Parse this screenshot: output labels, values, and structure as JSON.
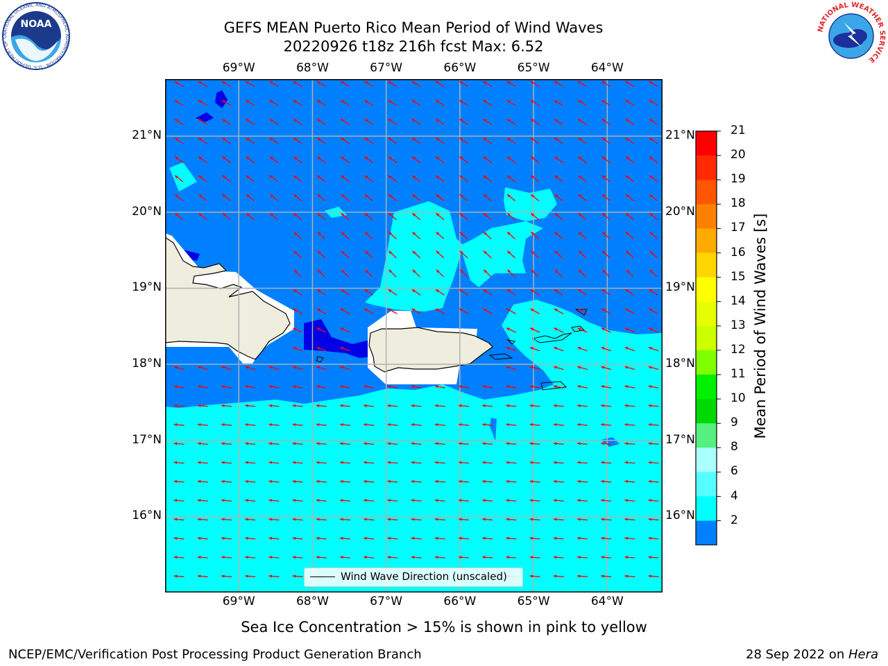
{
  "header": {
    "title_line1": "GEFS MEAN Puerto Rico Mean Period of Wind Waves",
    "title_line2": "20220926 t18z 216h fcst   Max: 6.52"
  },
  "logos": {
    "left_name": "NOAA",
    "left_ring_text": "NATIONAL OCEANIC AND ATMOSPHERIC ADMINISTRATION · U.S. DEPARTMENT OF COMMERCE",
    "right_ring_text": "NATIONAL WEATHER SERVICE"
  },
  "map": {
    "lon_labels": [
      "69°W",
      "68°W",
      "67°W",
      "66°W",
      "65°W",
      "64°W"
    ],
    "lat_labels": [
      "21°N",
      "20°N",
      "19°N",
      "18°N",
      "17°N",
      "16°N"
    ],
    "extent": {
      "lon_min": -70.0,
      "lon_max": -63.25,
      "lat_min": 15.0,
      "lat_max": 21.75
    },
    "arrow_color": "#ff0000",
    "land_color": "#efedde",
    "ocean_colors": {
      "2-4": "#0080ff",
      "4-6": "#00ffff",
      "below-2": "#0000e6"
    },
    "legend_label": "Wind Wave Direction (unscaled)"
  },
  "colorbar": {
    "label": "Mean Period of Wind Waves [s]",
    "ticks": [
      "21",
      "20",
      "19",
      "18",
      "17",
      "16",
      "15",
      "14",
      "13",
      "12",
      "11",
      "10",
      "9",
      "8",
      "6",
      "4",
      "2"
    ],
    "colors": [
      "#ff0000",
      "#ff2a00",
      "#ff5500",
      "#ff8000",
      "#ffaa00",
      "#ffd500",
      "#ffff00",
      "#e6ff00",
      "#ccff00",
      "#80ff00",
      "#00f000",
      "#00d900",
      "#55f080",
      "#aaffff",
      "#55ffff",
      "#00ffff",
      "#0080ff"
    ],
    "under_color": "#0000e6"
  },
  "footer": {
    "ice_note": "Sea Ice Concentration > 15% is shown in pink to yellow",
    "branch": "NCEP/EMC/Verification Post Processing Product Generation Branch",
    "date": "28 Sep 2022 on ",
    "machine": "Hera"
  }
}
